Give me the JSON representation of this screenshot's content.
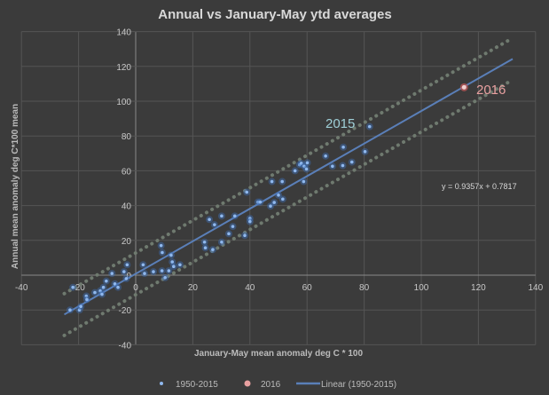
{
  "chart_data": {
    "type": "scatter",
    "title": "Annual vs  January-May ytd averages",
    "xlabel": "January-May mean anomaly deg C * 100",
    "ylabel": "Annual mean  anomaly deg C*100 mean",
    "xlim": [
      -40,
      140
    ],
    "ylim": [
      -40,
      140
    ],
    "xticks": [
      -40,
      -20,
      0,
      20,
      40,
      60,
      80,
      100,
      120,
      140
    ],
    "yticks": [
      -40,
      -20,
      0,
      20,
      40,
      60,
      80,
      100,
      120,
      140
    ],
    "grid": true,
    "legend_position": "bottom",
    "colors": {
      "background": "#3b3b3b",
      "points": "#8fb8ee",
      "highlight": "#e8a0a0",
      "trend": "#5a7fb8",
      "bounds": "#6f7a6f",
      "grid": "#555555",
      "text": "#d8d8d8"
    },
    "series": [
      {
        "name": "1950-2015",
        "points": [
          [
            -22,
            -7
          ],
          [
            -23,
            -20
          ],
          [
            -19.7,
            -20
          ],
          [
            -19.2,
            -18
          ],
          [
            -17.3,
            -12
          ],
          [
            -17.1,
            -14
          ],
          [
            -14.3,
            -10
          ],
          [
            -12.4,
            -9
          ],
          [
            -11.8,
            -11
          ],
          [
            -11.3,
            -7
          ],
          [
            -10.3,
            -3.4
          ],
          [
            -8.3,
            1
          ],
          [
            -7.3,
            -5
          ],
          [
            -6.2,
            -7
          ],
          [
            -4.1,
            2
          ],
          [
            -3,
            6
          ],
          [
            -3.3,
            -2
          ],
          [
            2.6,
            6
          ],
          [
            3.1,
            1
          ],
          [
            6.2,
            2
          ],
          [
            8.9,
            17
          ],
          [
            9.3,
            13
          ],
          [
            9.2,
            2.5
          ],
          [
            10.3,
            -1.4
          ],
          [
            11.6,
            2.5
          ],
          [
            12.4,
            11.5
          ],
          [
            12.8,
            7.6
          ],
          [
            13.3,
            5
          ],
          [
            15.5,
            6
          ],
          [
            24.1,
            19
          ],
          [
            24.4,
            15.7
          ],
          [
            27,
            14.7
          ],
          [
            25.8,
            32
          ],
          [
            27.6,
            29
          ],
          [
            30.1,
            34
          ],
          [
            30.1,
            19
          ],
          [
            32.6,
            23.8
          ],
          [
            34,
            28
          ],
          [
            34.7,
            34
          ],
          [
            38.2,
            22.8
          ],
          [
            40,
            32.6
          ],
          [
            40,
            30.8
          ],
          [
            38.9,
            47.7
          ],
          [
            42.8,
            42
          ],
          [
            43.6,
            42
          ],
          [
            47.2,
            39.7
          ],
          [
            48.5,
            41.8
          ],
          [
            50,
            46
          ],
          [
            51.5,
            43.7
          ],
          [
            47.7,
            53.8
          ],
          [
            51.3,
            53.8
          ],
          [
            55.8,
            60
          ],
          [
            57.4,
            63.5
          ],
          [
            58,
            64.3
          ],
          [
            59,
            62.6
          ],
          [
            59.8,
            61
          ],
          [
            60.1,
            64.6
          ],
          [
            58.8,
            53.8
          ],
          [
            66.5,
            68.5
          ],
          [
            68.9,
            62.6
          ],
          [
            72.5,
            63
          ],
          [
            72.7,
            73.6
          ],
          [
            75.7,
            65
          ],
          [
            80.3,
            71
          ],
          [
            81.9,
            85.4
          ]
        ]
      },
      {
        "name": "2016",
        "points": [
          [
            115,
            108
          ]
        ]
      },
      {
        "name": "Linear (1950-2015)",
        "equation": "y = 0.9357x + 0.7817",
        "slope": 0.9357,
        "intercept": 0.7817,
        "x_range": [
          -25,
          132
        ],
        "band": 12
      }
    ],
    "annotations": [
      {
        "text": "2015",
        "x": 81.9,
        "y": 85.4
      },
      {
        "text": "2016",
        "x": 115,
        "y": 108
      },
      {
        "text": "y = 0.9357x + 0.7817"
      }
    ]
  }
}
